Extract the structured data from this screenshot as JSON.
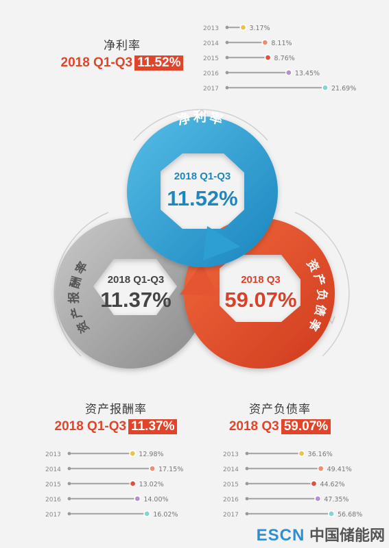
{
  "colors": {
    "blue": "#2a9bd1",
    "gray": "#9e9e9e",
    "orange": "#e0452b",
    "text_red": "#e0452b",
    "year_dots": [
      "#e8c54a",
      "#ee8e6a",
      "#e0503a",
      "#b58fd6",
      "#7fd6d3"
    ]
  },
  "chart_data": [
    {
      "type": "bar",
      "name": "净利率",
      "title": "净利率",
      "period": "2018 Q1-Q3",
      "current_value": "11.52%",
      "categories": [
        "2013",
        "2014",
        "2015",
        "2016",
        "2017"
      ],
      "values": [
        3.17,
        8.11,
        8.76,
        13.45,
        21.69
      ],
      "value_labels": [
        "3.17%",
        "8.11%",
        "8.76%",
        "13.45%",
        "21.69%"
      ],
      "xlim": [
        0,
        21.69
      ]
    },
    {
      "type": "bar",
      "name": "资产报酬率",
      "title": "资产报酬率",
      "period": "2018 Q1-Q3",
      "current_value": "11.37%",
      "categories": [
        "2013",
        "2014",
        "2015",
        "2016",
        "2017"
      ],
      "values": [
        12.98,
        17.15,
        13.02,
        14.0,
        16.02
      ],
      "value_labels": [
        "12.98%",
        "17.15%",
        "13.02%",
        "14.00%",
        "16.02%"
      ],
      "xlim": [
        0,
        17.15
      ]
    },
    {
      "type": "bar",
      "name": "资产负债率",
      "title": "资产负债率",
      "period": "2018 Q3",
      "current_value": "59.07%",
      "categories": [
        "2013",
        "2014",
        "2015",
        "2016",
        "2017"
      ],
      "values": [
        36.16,
        49.41,
        44.62,
        47.35,
        56.68
      ],
      "value_labels": [
        "36.16%",
        "49.41%",
        "44.62%",
        "47.35%",
        "56.68%"
      ],
      "xlim": [
        0,
        56.68
      ]
    }
  ],
  "wheel": {
    "blue": {
      "arc_label": "净利率",
      "period": "2018 Q1-Q3",
      "value": "11.52%"
    },
    "gray": {
      "arc_label": "资产报酬率",
      "period": "2018 Q1-Q3",
      "value": "11.37%"
    },
    "orange": {
      "arc_label": "资产负债率",
      "period": "2018 Q3",
      "value": "59.07%"
    }
  },
  "watermark": {
    "latin": "ESCN",
    "cjk": "中国储能网"
  }
}
